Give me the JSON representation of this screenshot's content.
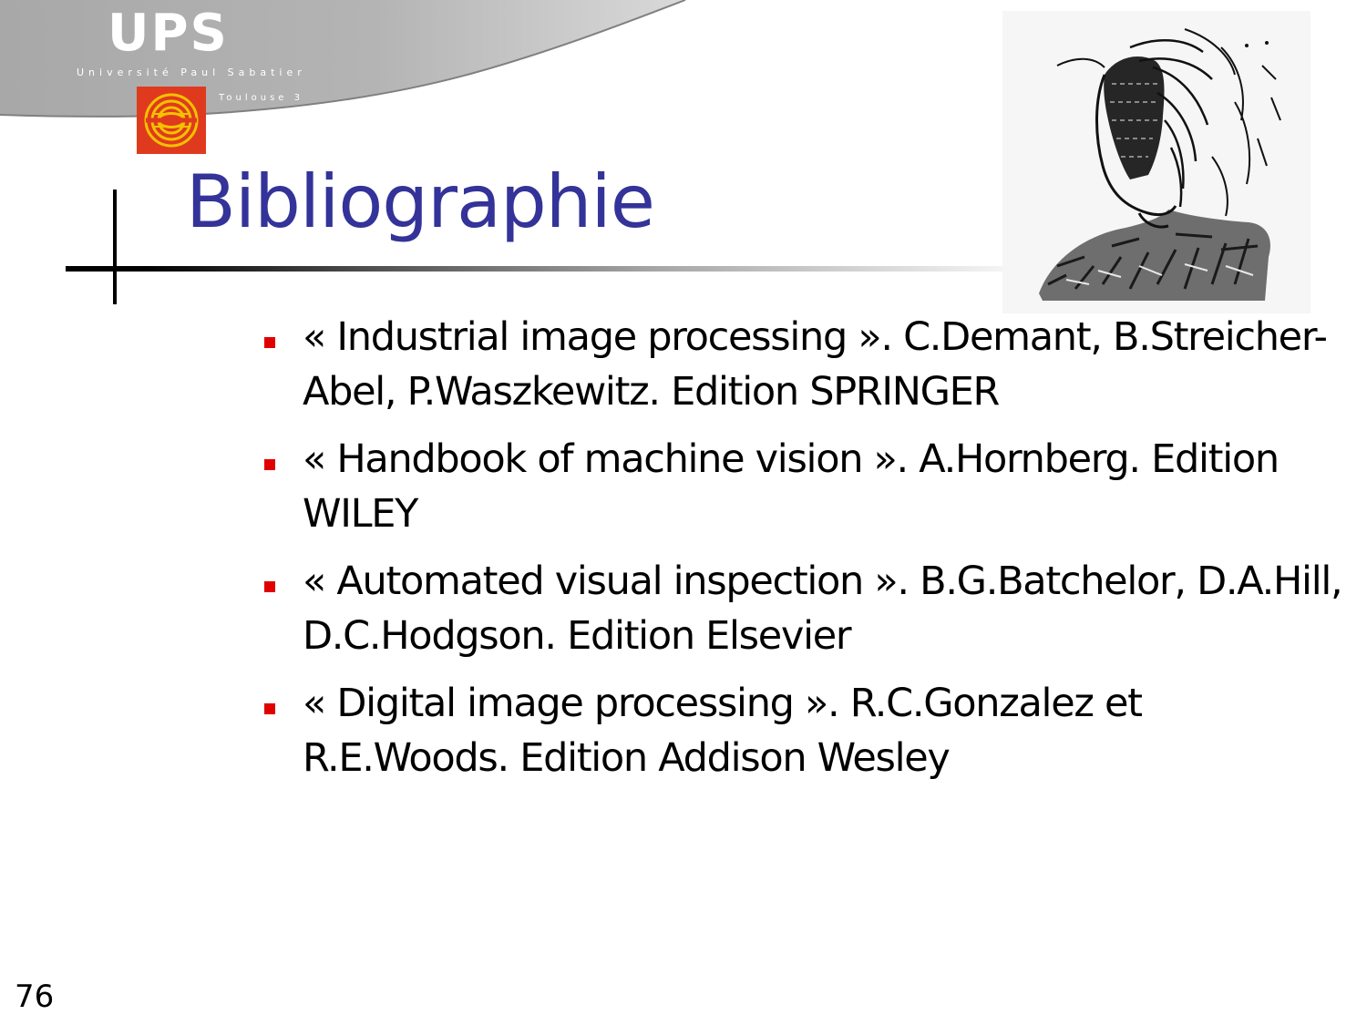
{
  "logo": {
    "wordmark": "UPS",
    "university": "Université Paul Sabatier",
    "city": "Toulouse 3",
    "emblem_color": "#e03a1e",
    "emblem_accent": "#f2c200"
  },
  "slide": {
    "title": "Bibliographie",
    "title_color": "#333399",
    "bullet_color": "#e00000",
    "illustration": "sketch-portrait-image",
    "page_number": "76"
  },
  "bibliography": [
    {
      "text": "« Industrial image processing ». C.Demant, B.Streicher-Abel, P.Waszkewitz. Edition SPRINGER"
    },
    {
      "text": "« Handbook of machine vision ». A.Hornberg. Edition WILEY"
    },
    {
      "text": "« Automated visual inspection ». B.G.Batchelor, D.A.Hill, D.C.Hodgson. Edition Elsevier"
    },
    {
      "text": "« Digital image processing ». R.C.Gonzalez et R.E.Woods. Edition Addison Wesley"
    }
  ]
}
